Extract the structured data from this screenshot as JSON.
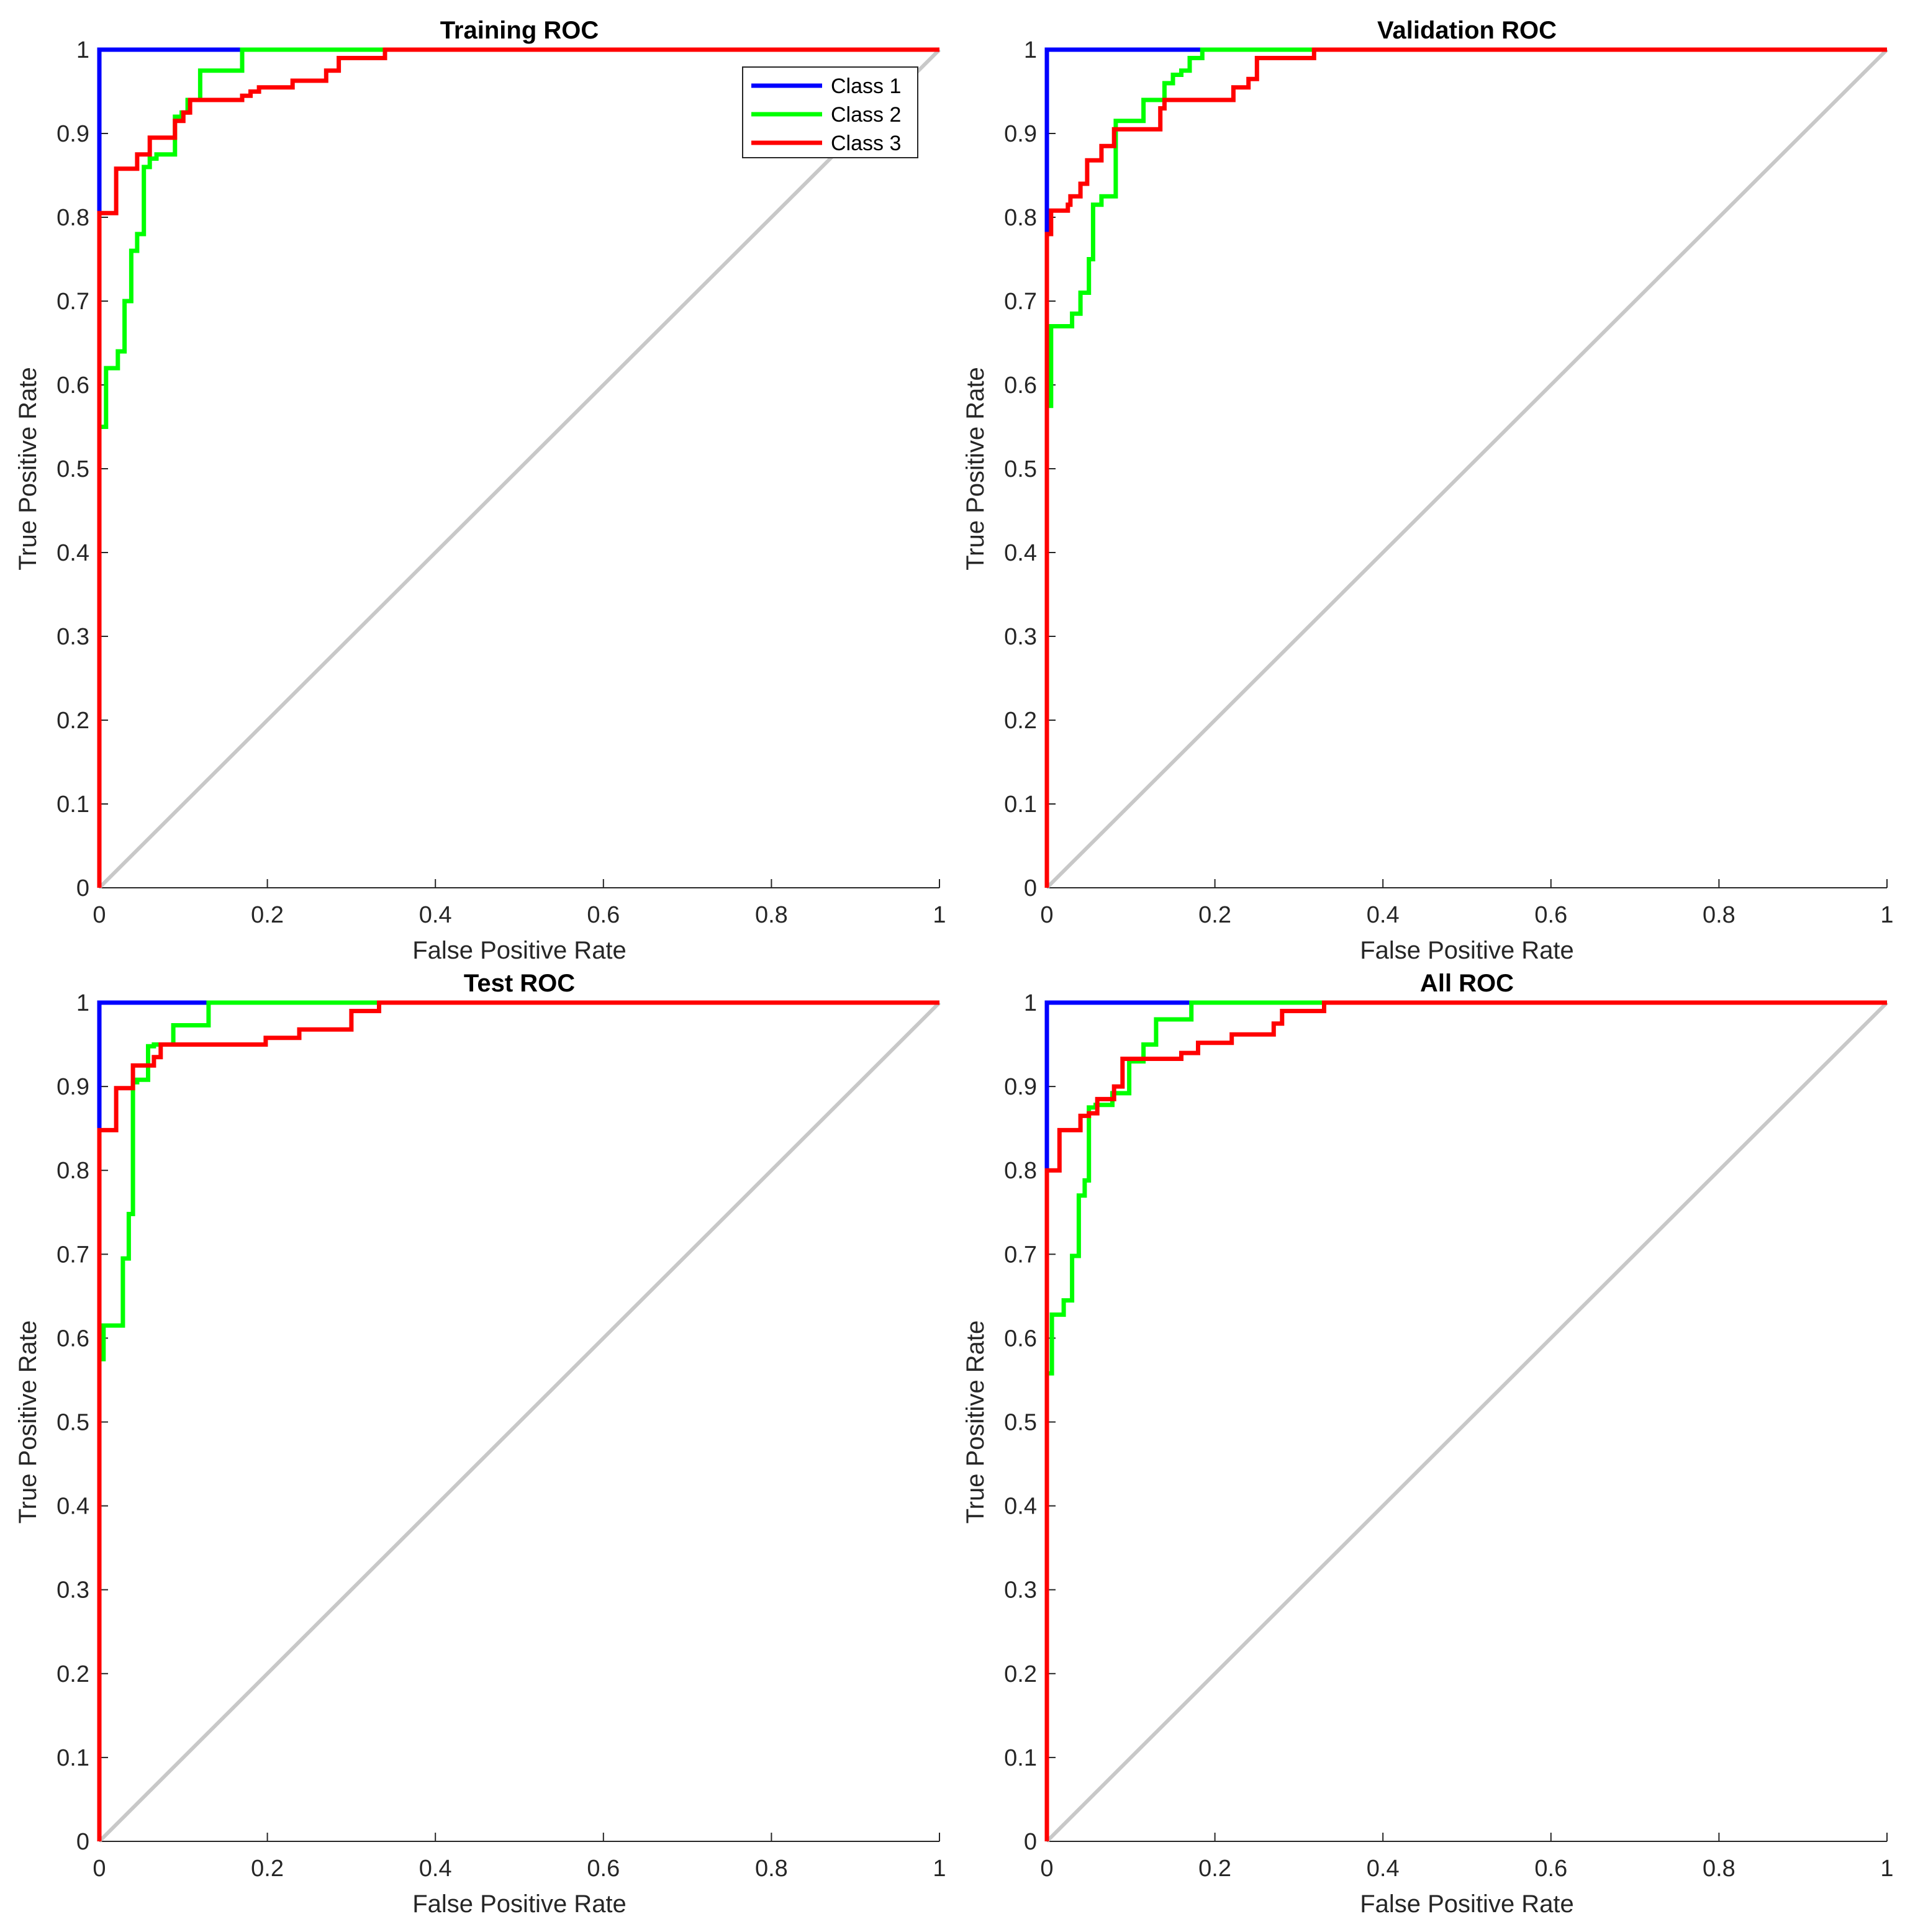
{
  "colors": {
    "class1": "#0000ff",
    "class2": "#00ff00",
    "class3": "#ff0000",
    "diagonal": "#c8c8c8",
    "axis": "#262626"
  },
  "chart_data": [
    {
      "type": "line",
      "title": "Training ROC",
      "xlabel": "False Positive Rate",
      "ylabel": "True Positive Rate",
      "xlim": [
        0,
        1
      ],
      "ylim": [
        0,
        1
      ],
      "xticks": [
        "0",
        "0.2",
        "0.4",
        "0.6",
        "0.8",
        "1"
      ],
      "yticks": [
        "0",
        "0.1",
        "0.2",
        "0.3",
        "0.4",
        "0.5",
        "0.6",
        "0.7",
        "0.8",
        "0.9",
        "1"
      ],
      "legend": {
        "location": "top-right",
        "entries": [
          "Class 1",
          "Class 2",
          "Class 3"
        ]
      },
      "series": [
        {
          "name": "Class 1",
          "color_key": "class1",
          "x": [
            0,
            0,
            0,
            0.167,
            1
          ],
          "y": [
            0,
            0.81,
            1,
            1,
            1
          ]
        },
        {
          "name": "Class 2",
          "color_key": "class2",
          "x": [
            0,
            0,
            0.008,
            0.008,
            0.022,
            0.022,
            0.03,
            0.03,
            0.038,
            0.038,
            0.045,
            0.045,
            0.053,
            0.053,
            0.06,
            0.06,
            0.068,
            0.068,
            0.09,
            0.09,
            0.098,
            0.098,
            0.105,
            0.105,
            0.12,
            0.12,
            0.17,
            0.17,
            1
          ],
          "y": [
            0,
            0.55,
            0.55,
            0.62,
            0.62,
            0.64,
            0.64,
            0.7,
            0.7,
            0.76,
            0.76,
            0.78,
            0.78,
            0.86,
            0.86,
            0.87,
            0.87,
            0.875,
            0.875,
            0.92,
            0.92,
            0.925,
            0.925,
            0.94,
            0.94,
            0.975,
            0.975,
            1,
            1
          ]
        },
        {
          "name": "Class 3",
          "color_key": "class3",
          "x": [
            0,
            0,
            0.02,
            0.02,
            0.045,
            0.045,
            0.06,
            0.06,
            0.09,
            0.09,
            0.1,
            0.1,
            0.108,
            0.108,
            0.17,
            0.17,
            0.18,
            0.18,
            0.19,
            0.19,
            0.23,
            0.23,
            0.27,
            0.27,
            0.285,
            0.285,
            0.34,
            0.34,
            1
          ],
          "y": [
            0,
            0.805,
            0.805,
            0.858,
            0.858,
            0.875,
            0.875,
            0.895,
            0.895,
            0.915,
            0.915,
            0.925,
            0.925,
            0.94,
            0.94,
            0.945,
            0.945,
            0.95,
            0.95,
            0.955,
            0.955,
            0.963,
            0.963,
            0.975,
            0.975,
            0.99,
            0.99,
            1,
            1
          ]
        }
      ]
    },
    {
      "type": "line",
      "title": "Validation ROC",
      "xlabel": "False Positive Rate",
      "ylabel": "True Positive Rate",
      "xlim": [
        0,
        1
      ],
      "ylim": [
        0,
        1
      ],
      "xticks": [
        "0",
        "0.2",
        "0.4",
        "0.6",
        "0.8",
        "1"
      ],
      "yticks": [
        "0",
        "0.1",
        "0.2",
        "0.3",
        "0.4",
        "0.5",
        "0.6",
        "0.7",
        "0.8",
        "0.9",
        "1"
      ],
      "series": [
        {
          "name": "Class 1",
          "color_key": "class1",
          "x": [
            0,
            0,
            0,
            0.185,
            1
          ],
          "y": [
            0,
            0.79,
            1,
            1,
            1
          ]
        },
        {
          "name": "Class 2",
          "color_key": "class2",
          "x": [
            0,
            0,
            0.005,
            0.005,
            0.03,
            0.03,
            0.04,
            0.04,
            0.05,
            0.05,
            0.055,
            0.055,
            0.065,
            0.065,
            0.082,
            0.082,
            0.115,
            0.115,
            0.14,
            0.14,
            0.15,
            0.15,
            0.16,
            0.16,
            0.17,
            0.17,
            0.185,
            0.185,
            1
          ],
          "y": [
            0,
            0.575,
            0.575,
            0.67,
            0.67,
            0.685,
            0.685,
            0.71,
            0.71,
            0.75,
            0.75,
            0.815,
            0.815,
            0.825,
            0.825,
            0.915,
            0.915,
            0.94,
            0.94,
            0.96,
            0.96,
            0.97,
            0.97,
            0.975,
            0.975,
            0.99,
            0.99,
            1,
            1
          ]
        },
        {
          "name": "Class 3",
          "color_key": "class3",
          "x": [
            0,
            0,
            0.005,
            0.005,
            0.025,
            0.025,
            0.028,
            0.028,
            0.04,
            0.04,
            0.048,
            0.048,
            0.065,
            0.065,
            0.08,
            0.08,
            0.135,
            0.135,
            0.14,
            0.14,
            0.222,
            0.222,
            0.24,
            0.24,
            0.25,
            0.25,
            0.318,
            0.318,
            1
          ],
          "y": [
            0,
            0.78,
            0.78,
            0.808,
            0.808,
            0.815,
            0.815,
            0.825,
            0.825,
            0.84,
            0.84,
            0.868,
            0.868,
            0.885,
            0.885,
            0.905,
            0.905,
            0.93,
            0.93,
            0.94,
            0.94,
            0.955,
            0.955,
            0.965,
            0.965,
            0.99,
            0.99,
            1,
            1
          ]
        }
      ]
    },
    {
      "type": "line",
      "title": "Test ROC",
      "xlabel": "False Positive Rate",
      "ylabel": "True Positive Rate",
      "xlim": [
        0,
        1
      ],
      "ylim": [
        0,
        1
      ],
      "xticks": [
        "0",
        "0.2",
        "0.4",
        "0.6",
        "0.8",
        "1"
      ],
      "yticks": [
        "0",
        "0.1",
        "0.2",
        "0.3",
        "0.4",
        "0.5",
        "0.6",
        "0.7",
        "0.8",
        "0.9",
        "1"
      ],
      "series": [
        {
          "name": "Class 1",
          "color_key": "class1",
          "x": [
            0,
            0,
            0,
            0.13,
            1
          ],
          "y": [
            0,
            0.85,
            1,
            1,
            1
          ]
        },
        {
          "name": "Class 2",
          "color_key": "class2",
          "x": [
            0,
            0,
            0.005,
            0.005,
            0.028,
            0.028,
            0.035,
            0.035,
            0.04,
            0.04,
            0.045,
            0.045,
            0.058,
            0.058,
            0.065,
            0.065,
            0.088,
            0.088,
            0.13,
            0.13,
            1
          ],
          "y": [
            0,
            0.575,
            0.575,
            0.615,
            0.615,
            0.695,
            0.695,
            0.748,
            0.748,
            0.905,
            0.905,
            0.908,
            0.908,
            0.948,
            0.948,
            0.95,
            0.95,
            0.973,
            0.973,
            1,
            1
          ]
        },
        {
          "name": "Class 3",
          "color_key": "class3",
          "x": [
            0,
            0,
            0.02,
            0.02,
            0.04,
            0.04,
            0.065,
            0.065,
            0.073,
            0.073,
            0.198,
            0.198,
            0.238,
            0.238,
            0.3,
            0.3,
            0.333,
            0.333,
            1
          ],
          "y": [
            0,
            0.848,
            0.848,
            0.898,
            0.898,
            0.925,
            0.925,
            0.935,
            0.935,
            0.95,
            0.95,
            0.958,
            0.958,
            0.968,
            0.968,
            0.99,
            0.99,
            1,
            1
          ]
        }
      ]
    },
    {
      "type": "line",
      "title": "All ROC",
      "xlabel": "False Positive Rate",
      "ylabel": "True Positive Rate",
      "xlim": [
        0,
        1
      ],
      "ylim": [
        0,
        1
      ],
      "xticks": [
        "0",
        "0.2",
        "0.4",
        "0.6",
        "0.8",
        "1"
      ],
      "yticks": [
        "0",
        "0.1",
        "0.2",
        "0.3",
        "0.4",
        "0.5",
        "0.6",
        "0.7",
        "0.8",
        "0.9",
        "1"
      ],
      "series": [
        {
          "name": "Class 1",
          "color_key": "class1",
          "x": [
            0,
            0,
            0,
            0.172,
            1
          ],
          "y": [
            0,
            0.8,
            1,
            1,
            1
          ]
        },
        {
          "name": "Class 2",
          "color_key": "class2",
          "x": [
            0,
            0,
            0.006,
            0.006,
            0.02,
            0.02,
            0.03,
            0.03,
            0.038,
            0.038,
            0.045,
            0.045,
            0.05,
            0.05,
            0.058,
            0.058,
            0.078,
            0.078,
            0.098,
            0.098,
            0.115,
            0.115,
            0.13,
            0.13,
            0.172,
            0.172,
            0.33,
            0.33,
            1
          ],
          "y": [
            0,
            0.558,
            0.558,
            0.628,
            0.628,
            0.645,
            0.645,
            0.698,
            0.698,
            0.77,
            0.77,
            0.788,
            0.788,
            0.875,
            0.875,
            0.878,
            0.878,
            0.892,
            0.892,
            0.93,
            0.93,
            0.95,
            0.95,
            0.98,
            0.98,
            1,
            1,
            1,
            1
          ]
        },
        {
          "name": "Class 3",
          "color_key": "class3",
          "x": [
            0,
            0,
            0.015,
            0.015,
            0.04,
            0.04,
            0.05,
            0.05,
            0.06,
            0.06,
            0.08,
            0.08,
            0.09,
            0.09,
            0.16,
            0.16,
            0.18,
            0.18,
            0.22,
            0.22,
            0.27,
            0.27,
            0.28,
            0.28,
            0.33,
            0.33,
            1
          ],
          "y": [
            0,
            0.8,
            0.8,
            0.848,
            0.848,
            0.865,
            0.865,
            0.868,
            0.868,
            0.885,
            0.885,
            0.9,
            0.9,
            0.933,
            0.933,
            0.94,
            0.94,
            0.952,
            0.952,
            0.962,
            0.962,
            0.975,
            0.975,
            0.99,
            0.99,
            1,
            1
          ]
        }
      ]
    }
  ]
}
